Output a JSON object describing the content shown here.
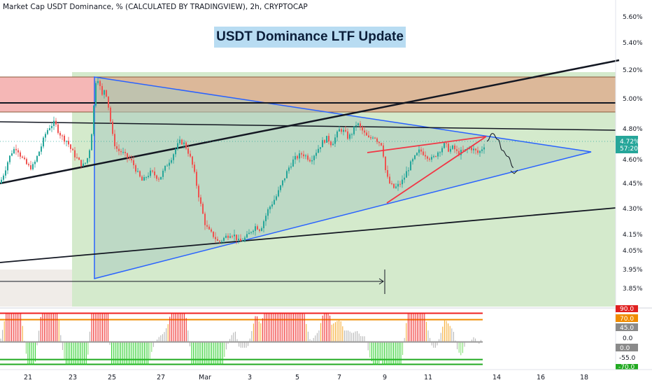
{
  "header": {
    "symbol_text": "Market Cap USDT Dominance, % (CALCULATED BY TRADINGVIEW), 2h, CRYPTOCAP"
  },
  "annotation": {
    "title": "USDT Dominance LTF Update"
  },
  "colors": {
    "candle_up": "#26a69a",
    "candle_down": "#ef5350",
    "triangle_stroke": "#2962ff",
    "triangle_fill": "#bcd8cc",
    "green_zone": "#c8e6c0",
    "red_zone": "#f4b4b4",
    "brown_zone": "#d9b28c",
    "wedge": "#f23645",
    "price_badge": "#26a69a"
  },
  "chart_data": [
    {
      "type": "candlestick",
      "title": "",
      "y_axis": {
        "unit": "%",
        "ticks": [
          "5.60%",
          "5.40%",
          "5.20%",
          "5.00%",
          "4.80%",
          "4.60%",
          "4.45%",
          "4.30%",
          "4.15%",
          "4.05%",
          "3.95%",
          "3.85%"
        ],
        "range": [
          3.8,
          5.7
        ]
      },
      "x_axis": {
        "ticks": [
          "21",
          "23",
          "25",
          "27",
          "Mar",
          "3",
          "5",
          "7",
          "9",
          "11",
          "14",
          "16",
          "18"
        ]
      },
      "last_price": {
        "value": "4.72%",
        "countdown": "57:20"
      },
      "price_path": [
        [
          0,
          4.45
        ],
        [
          6,
          4.52
        ],
        [
          12,
          4.6
        ],
        [
          18,
          4.66
        ],
        [
          24,
          4.68
        ],
        [
          30,
          4.62
        ],
        [
          36,
          4.58
        ],
        [
          42,
          4.55
        ],
        [
          48,
          4.56
        ],
        [
          54,
          4.63
        ],
        [
          60,
          4.7
        ],
        [
          66,
          4.78
        ],
        [
          72,
          4.82
        ],
        [
          78,
          4.84
        ],
        [
          84,
          4.78
        ],
        [
          90,
          4.74
        ],
        [
          96,
          4.72
        ],
        [
          102,
          4.66
        ],
        [
          108,
          4.62
        ],
        [
          114,
          4.58
        ],
        [
          120,
          4.56
        ],
        [
          126,
          4.62
        ],
        [
          130,
          4.72
        ],
        [
          134,
          4.95
        ],
        [
          138,
          5.18
        ],
        [
          142,
          5.1
        ],
        [
          146,
          5.02
        ],
        [
          150,
          5.08
        ],
        [
          154,
          4.98
        ],
        [
          158,
          4.85
        ],
        [
          162,
          4.72
        ],
        [
          168,
          4.66
        ],
        [
          174,
          4.65
        ],
        [
          180,
          4.62
        ],
        [
          186,
          4.6
        ],
        [
          192,
          4.56
        ],
        [
          198,
          4.5
        ],
        [
          204,
          4.46
        ],
        [
          210,
          4.5
        ],
        [
          216,
          4.52
        ],
        [
          222,
          4.5
        ],
        [
          228,
          4.48
        ],
        [
          234,
          4.53
        ],
        [
          240,
          4.58
        ],
        [
          246,
          4.62
        ],
        [
          252,
          4.68
        ],
        [
          258,
          4.72
        ],
        [
          264,
          4.7
        ],
        [
          270,
          4.64
        ],
        [
          276,
          4.55
        ],
        [
          282,
          4.42
        ],
        [
          288,
          4.3
        ],
        [
          294,
          4.2
        ],
        [
          300,
          4.16
        ],
        [
          306,
          4.14
        ],
        [
          312,
          4.1
        ],
        [
          318,
          4.12
        ],
        [
          324,
          4.14
        ],
        [
          330,
          4.16
        ],
        [
          336,
          4.14
        ],
        [
          342,
          4.1
        ],
        [
          348,
          4.12
        ],
        [
          354,
          4.14
        ],
        [
          360,
          4.18
        ],
        [
          366,
          4.2
        ],
        [
          372,
          4.18
        ],
        [
          378,
          4.24
        ],
        [
          384,
          4.3
        ],
        [
          390,
          4.34
        ],
        [
          396,
          4.38
        ],
        [
          402,
          4.44
        ],
        [
          408,
          4.5
        ],
        [
          414,
          4.56
        ],
        [
          420,
          4.6
        ],
        [
          426,
          4.62
        ],
        [
          432,
          4.64
        ],
        [
          438,
          4.62
        ],
        [
          444,
          4.6
        ],
        [
          450,
          4.64
        ],
        [
          456,
          4.68
        ],
        [
          462,
          4.72
        ],
        [
          468,
          4.74
        ],
        [
          474,
          4.7
        ],
        [
          480,
          4.75
        ],
        [
          486,
          4.8
        ],
        [
          492,
          4.78
        ],
        [
          498,
          4.74
        ],
        [
          504,
          4.78
        ],
        [
          510,
          4.84
        ],
        [
          516,
          4.8
        ],
        [
          522,
          4.76
        ],
        [
          528,
          4.73
        ],
        [
          534,
          4.76
        ],
        [
          540,
          4.72
        ],
        [
          546,
          4.7
        ],
        [
          552,
          4.5
        ],
        [
          558,
          4.44
        ],
        [
          564,
          4.42
        ],
        [
          570,
          4.44
        ],
        [
          576,
          4.47
        ],
        [
          582,
          4.53
        ],
        [
          588,
          4.58
        ],
        [
          594,
          4.62
        ],
        [
          600,
          4.66
        ],
        [
          606,
          4.64
        ],
        [
          612,
          4.62
        ],
        [
          618,
          4.6
        ],
        [
          624,
          4.64
        ],
        [
          630,
          4.67
        ],
        [
          636,
          4.7
        ],
        [
          642,
          4.66
        ],
        [
          648,
          4.68
        ],
        [
          654,
          4.64
        ],
        [
          660,
          4.65
        ],
        [
          666,
          4.66
        ],
        [
          672,
          4.68
        ],
        [
          678,
          4.66
        ],
        [
          684,
          4.64
        ],
        [
          690,
          4.68
        ],
        [
          696,
          4.72
        ]
      ],
      "projection_path": [
        [
          696,
          4.72
        ],
        [
          704,
          4.77
        ],
        [
          712,
          4.73
        ],
        [
          718,
          4.66
        ],
        [
          726,
          4.62
        ],
        [
          734,
          4.55
        ]
      ]
    },
    {
      "type": "bar",
      "title": "",
      "y_axis": {
        "ticks": [
          "90.0",
          "70.0",
          "45.0",
          "0.0",
          "0.0",
          "-55.0",
          "-70.0"
        ],
        "range": [
          -80,
          100
        ]
      },
      "levels": [
        90,
        70,
        -55,
        -70
      ]
    }
  ]
}
